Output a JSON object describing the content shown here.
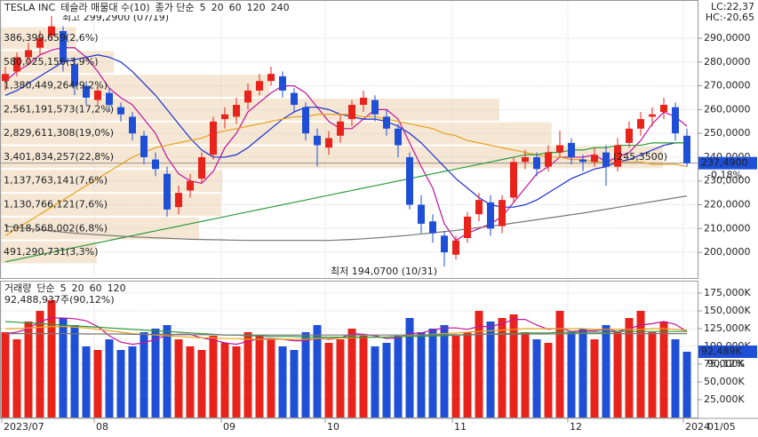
{
  "chart_data": {
    "type": "candlestick",
    "title": "TESLA INC",
    "subtitle": "테슬라 매물대 수(10)",
    "up_color": "#e8231b",
    "down_color": "#1f4fd6",
    "categories": [
      "2023/07",
      null,
      null,
      null,
      null,
      null,
      null,
      null,
      "08",
      null,
      null,
      null,
      null,
      null,
      null,
      null,
      null,
      null,
      null,
      "09",
      null,
      null,
      null,
      null,
      null,
      null,
      null,
      null,
      "10",
      null,
      null,
      null,
      null,
      null,
      null,
      null,
      null,
      null,
      null,
      "11",
      null,
      null,
      null,
      null,
      null,
      null,
      null,
      null,
      null,
      "12",
      null,
      null,
      null,
      null,
      null,
      null,
      null,
      null,
      null,
      "2024"
    ],
    "last_date": "01/05",
    "candles": [
      [
        272,
        278,
        268,
        275
      ],
      [
        276,
        284,
        274,
        282
      ],
      [
        282,
        288,
        279,
        285
      ],
      [
        286,
        293,
        283,
        290
      ],
      [
        291,
        299.29,
        289,
        295
      ],
      [
        293,
        295,
        276,
        280
      ],
      [
        279,
        282,
        266,
        270
      ],
      [
        270,
        272,
        262,
        265
      ],
      [
        264,
        270,
        262,
        268
      ],
      [
        267,
        269,
        259,
        262
      ],
      [
        261,
        263,
        255,
        258
      ],
      [
        257,
        259,
        247,
        250
      ],
      [
        249,
        251,
        237,
        240
      ],
      [
        239,
        242,
        232,
        235
      ],
      [
        233,
        236,
        215,
        218
      ],
      [
        219,
        228,
        216,
        225
      ],
      [
        226,
        233,
        223,
        230
      ],
      [
        231,
        242,
        229,
        240
      ],
      [
        241,
        257,
        239,
        255
      ],
      [
        256,
        261,
        252,
        258
      ],
      [
        257,
        265,
        254,
        262
      ],
      [
        263,
        271,
        260,
        268
      ],
      [
        268,
        275,
        266,
        272
      ],
      [
        272,
        278,
        270,
        275
      ],
      [
        274,
        276,
        265,
        268
      ],
      [
        267,
        269,
        259,
        262
      ],
      [
        261,
        263,
        247,
        250
      ],
      [
        249,
        252,
        236,
        245
      ],
      [
        244,
        251,
        241,
        248
      ],
      [
        249,
        258,
        246,
        255
      ],
      [
        256,
        264,
        253,
        262
      ],
      [
        262,
        268,
        259,
        265
      ],
      [
        264,
        266,
        255,
        258
      ],
      [
        257,
        260,
        249,
        252
      ],
      [
        252,
        254,
        240,
        245
      ],
      [
        240,
        242,
        218,
        220
      ],
      [
        220,
        224,
        208,
        212
      ],
      [
        213,
        216,
        204,
        208
      ],
      [
        207,
        209,
        194.07,
        200
      ],
      [
        199,
        207,
        197,
        205
      ],
      [
        206,
        217,
        204,
        215
      ],
      [
        216,
        225,
        213,
        222
      ],
      [
        221,
        224,
        207,
        210
      ],
      [
        211,
        224,
        208,
        222
      ],
      [
        223,
        240,
        221,
        238
      ],
      [
        238,
        243,
        235,
        240
      ],
      [
        240,
        242,
        232,
        235
      ],
      [
        236,
        245,
        234,
        242
      ],
      [
        242,
        251,
        240,
        245
      ],
      [
        246,
        248,
        237,
        240
      ],
      [
        239,
        241,
        234,
        238
      ],
      [
        238,
        244,
        236,
        241
      ],
      [
        242,
        245,
        228,
        236
      ],
      [
        236,
        248,
        234,
        245
      ],
      [
        246,
        255,
        244,
        252
      ],
      [
        252,
        259,
        249,
        256
      ],
      [
        257,
        261,
        253,
        258
      ],
      [
        259,
        265,
        256,
        262
      ],
      [
        261,
        263,
        247,
        250
      ],
      [
        249,
        252,
        236,
        237.49
      ]
    ],
    "ylim": [
      189.2,
      304.2
    ],
    "yticks": [
      {
        "value": 200,
        "label": "200,0000"
      },
      {
        "value": 210,
        "label": "210,0000"
      },
      {
        "value": 220,
        "label": "220,0000"
      },
      {
        "value": 230,
        "label": "230,0000"
      },
      {
        "value": 240,
        "label": "240,0000"
      },
      {
        "value": 250,
        "label": "250,0000"
      },
      {
        "value": 260,
        "label": "260,0000"
      },
      {
        "value": 270,
        "label": "270,0000"
      },
      {
        "value": 280,
        "label": "280,0000"
      },
      {
        "value": 290,
        "label": "290,0000"
      }
    ],
    "grid": true,
    "ma_label": "종가 단순",
    "moving_averages": [
      {
        "name": "5",
        "color": "#c0139c",
        "values": [
          272,
          276,
          279,
          283,
          285,
          286,
          286,
          282,
          276,
          269,
          265,
          262,
          256,
          250,
          240,
          233,
          230,
          229,
          234,
          244,
          250,
          259,
          263,
          267,
          270,
          270,
          267,
          261,
          255,
          252,
          252,
          256,
          260,
          260,
          256,
          246,
          236,
          227,
          212,
          205,
          208,
          210,
          212,
          215,
          221,
          227,
          233,
          236,
          240,
          240,
          240,
          241,
          238,
          240,
          242,
          247,
          254,
          259,
          257,
          253
        ]
      },
      {
        "name": "20",
        "color": "#1d2fd0",
        "values": [
          266,
          268,
          271,
          274,
          277,
          280,
          281,
          282,
          283,
          282,
          280,
          276,
          271,
          266,
          260,
          254,
          248,
          243,
          240,
          240,
          241,
          244,
          248,
          252,
          256,
          259,
          261,
          261,
          260,
          258,
          257,
          256,
          256,
          255,
          253,
          250,
          246,
          241,
          236,
          231,
          227,
          223,
          220,
          219,
          219,
          220,
          222,
          225,
          228,
          231,
          233,
          235,
          236,
          238,
          239,
          241,
          243,
          245,
          246,
          246
        ]
      },
      {
        "name": "60",
        "color": "#e8a21a",
        "values": [
          207,
          210,
          213,
          216,
          219,
          222,
          225,
          228,
          231,
          234,
          237,
          240,
          242,
          244,
          245,
          246,
          247,
          248,
          250,
          251,
          252,
          253,
          254,
          255,
          256,
          257,
          257,
          258,
          258,
          258,
          258,
          257,
          257,
          256,
          255,
          254,
          253,
          252,
          250,
          249,
          247,
          246,
          245,
          244,
          243,
          242,
          241,
          240,
          240,
          239,
          239,
          238,
          238,
          238,
          238,
          238,
          237,
          237,
          237,
          236
        ]
      },
      {
        "name": "120",
        "color": "#2e9a3a",
        "values": [
          196,
          197,
          198,
          199,
          200,
          201,
          202,
          203,
          204,
          205,
          206,
          207,
          208,
          209,
          210,
          211,
          212,
          213,
          214,
          215,
          216,
          217,
          218,
          219,
          220,
          221,
          222,
          223,
          224,
          225,
          226,
          227,
          228,
          229,
          230,
          231,
          232,
          233,
          234,
          235,
          236,
          237,
          238,
          239,
          240,
          241,
          241,
          242,
          242,
          243,
          243,
          244,
          244,
          245,
          245,
          245,
          246,
          246,
          246,
          246
        ]
      },
      {
        "name": "240",
        "color": "#777777",
        "values": [
          211,
          210.5,
          210,
          209.5,
          209,
          208.5,
          208,
          207.7,
          207.4,
          207.1,
          206.8,
          206.5,
          206.3,
          206.1,
          205.9,
          205.7,
          205.5,
          205.4,
          205.3,
          205.2,
          205.1,
          205,
          205,
          205,
          205,
          205,
          205,
          205,
          205,
          205.2,
          205.4,
          205.7,
          206,
          206.4,
          206.8,
          207.2,
          207.7,
          208.2,
          208.7,
          209.2,
          209.8,
          210.4,
          211,
          211.6,
          212.3,
          213,
          213.7,
          214.4,
          215.1,
          215.8,
          216.5,
          217.3,
          218.1,
          218.9,
          219.7,
          220.5,
          221.3,
          222.1,
          222.9,
          223.7
        ]
      }
    ],
    "volume_profile": [
      {
        "value": 386399659,
        "label": "386,399,659(2,6%)",
        "range": [
          285,
          295
        ]
      },
      {
        "value": 580025156,
        "label": "580,025,156(3,9%)",
        "range": [
          275,
          285
        ]
      },
      {
        "value": 1380449264,
        "label": "1,380,449,264(9,2%)",
        "range": [
          265,
          275
        ]
      },
      {
        "value": 2561191573,
        "label": "2,561,191,573(17,2%)",
        "range": [
          255,
          265
        ]
      },
      {
        "value": 2829611308,
        "label": "2,829,611,308(19,0%)",
        "range": [
          245,
          255
        ]
      },
      {
        "value": 3401834257,
        "label": "3,401,834,257(22,8%)",
        "range": [
          235,
          245
        ]
      },
      {
        "value": 1137763141,
        "label": "1,137,763,141(7,6%)",
        "range": [
          225,
          235
        ]
      },
      {
        "value": 1130766121,
        "label": "1,130,766,121(7,6%)",
        "range": [
          215,
          225
        ]
      },
      {
        "value": 1018568002,
        "label": "1,018,568,002(6,8%)",
        "range": [
          205,
          215
        ]
      },
      {
        "value": 491290731,
        "label": "491,290,731(3,3%)",
        "range": [
          195,
          205
        ]
      }
    ],
    "profile_note": "(245,3500)",
    "max_label": "최고 299,2900 (07/19)",
    "min_label": "최저 194,0700 (10/31)",
    "lc": "LC:22,37",
    "hc": "HC:-20,65",
    "last_price_label": "237,4900",
    "last_change": "-0,18%",
    "volume": {
      "label": "거래량",
      "ma_label": "단순",
      "info": "92,488,937주(90,12%)",
      "last_label": "92,489K",
      "last_pct": "90,12%",
      "values": [
        120000,
        110000,
        135000,
        150000,
        165000,
        140000,
        130000,
        100000,
        95000,
        110000,
        95000,
        100000,
        120000,
        125000,
        130000,
        110000,
        100000,
        95000,
        115000,
        105000,
        100000,
        120000,
        115000,
        110000,
        100000,
        95000,
        120000,
        130000,
        105000,
        110000,
        125000,
        115000,
        100000,
        105000,
        115000,
        140000,
        120000,
        125000,
        130000,
        115000,
        120000,
        150000,
        135000,
        140000,
        145000,
        120000,
        110000,
        105000,
        150000,
        120000,
        125000,
        110000,
        130000,
        120000,
        140000,
        150000,
        120000,
        135000,
        110000,
        92489
      ],
      "ylim": [
        0,
        190000
      ],
      "yticks": [
        {
          "value": 25000,
          "label": "25,000K"
        },
        {
          "value": 50000,
          "label": "50,000K"
        },
        {
          "value": 75000,
          "label": "75,000K"
        },
        {
          "value": 100000,
          "label": "100,000K"
        },
        {
          "value": 125000,
          "label": "125,000K"
        },
        {
          "value": 150000,
          "label": "150,000K"
        },
        {
          "value": 175000,
          "label": "175,000K"
        }
      ],
      "moving_averages": [
        {
          "name": "5",
          "color": "#c0139c",
          "values": [
            118000,
            120000,
            125000,
            135000,
            140000,
            140000,
            139000,
            136000,
            128000,
            115000,
            106000,
            103000,
            105000,
            110000,
            116000,
            117000,
            117000,
            112000,
            109000,
            105000,
            103000,
            107000,
            111000,
            111000,
            110000,
            108000,
            108000,
            112000,
            110000,
            112000,
            118000,
            117000,
            115000,
            111000,
            112000,
            118000,
            119000,
            123000,
            126000,
            126000,
            124000,
            128000,
            128000,
            132000,
            138000,
            138000,
            130000,
            124000,
            126000,
            121000,
            122000,
            122000,
            124000,
            121000,
            125000,
            130000,
            132000,
            135000,
            131000,
            121000
          ]
        },
        {
          "name": "20",
          "color": "#e8a21a",
          "values": [
            125000,
            125000,
            126000,
            127000,
            128000,
            128000,
            127000,
            126000,
            124000,
            122000,
            120000,
            118000,
            117000,
            116000,
            115000,
            114000,
            113000,
            112000,
            112000,
            111000,
            111000,
            110000,
            110000,
            110000,
            110000,
            110000,
            110000,
            111000,
            111000,
            112000,
            112000,
            113000,
            113000,
            113000,
            114000,
            115000,
            116000,
            117000,
            118000,
            119000,
            120000,
            121000,
            122000,
            123000,
            124000,
            125000,
            125000,
            125000,
            125000,
            125000,
            125000,
            124000,
            124000,
            124000,
            124000,
            124000,
            125000,
            125000,
            124000,
            123000
          ]
        },
        {
          "name": "60",
          "color": "#2e9a3a",
          "values": [
            135000,
            134000,
            133000,
            132000,
            131000,
            130000,
            129000,
            128000,
            127000,
            126000,
            125000,
            124000,
            123000,
            122000,
            121000,
            120000,
            119000,
            118000,
            117000,
            116000,
            116000,
            115000,
            115000,
            114000,
            114000,
            114000,
            113000,
            113000,
            113000,
            113000,
            113000,
            113000,
            113000,
            113000,
            114000,
            114000,
            114000,
            115000,
            115000,
            116000,
            116000,
            117000,
            117000,
            118000,
            118000,
            119000,
            119000,
            119000,
            120000,
            120000,
            120000,
            120000,
            120000,
            121000,
            121000,
            121000,
            121000,
            121000,
            121000,
            121000
          ]
        },
        {
          "name": "120",
          "color": "#777777",
          "values": [
            118000,
            118000,
            118000,
            118000,
            118000,
            118000,
            118000,
            117500,
            117500,
            117500,
            117500,
            117000,
            117000,
            117000,
            117000,
            116500,
            116500,
            116500,
            116500,
            116000,
            116000,
            116000,
            116000,
            116000,
            116000,
            116000,
            116000,
            116000,
            116000,
            116000,
            116000,
            116000,
            116000,
            116000,
            116000,
            116000,
            116000,
            116500,
            116500,
            116500,
            116500,
            117000,
            117000,
            117000,
            117000,
            117500,
            117500,
            117500,
            117500,
            118000,
            118000,
            118000,
            118000,
            118000,
            118000,
            118000,
            118000,
            118000,
            118000,
            118000
          ]
        }
      ]
    }
  }
}
